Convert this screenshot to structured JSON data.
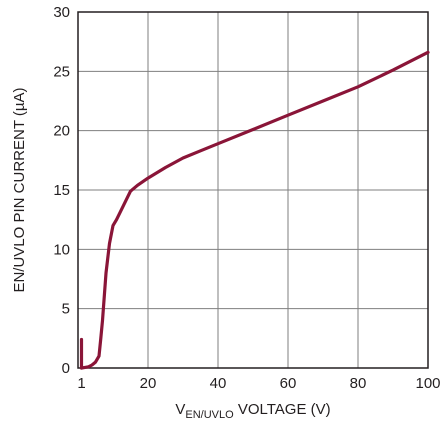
{
  "chart_data": {
    "type": "line",
    "title": "",
    "xlabel": {
      "main": "V",
      "subscript": "EN/UVLO",
      "suffix": " VOLTAGE (V)"
    },
    "ylabel": "EN/UVLO PIN CURRENT (µA)",
    "xlim": [
      0,
      100
    ],
    "ylim": [
      0,
      30
    ],
    "x_ticks": [
      1,
      20,
      40,
      60,
      80,
      100
    ],
    "x_tick_labels": [
      "1",
      "20",
      "40",
      "60",
      "80",
      "100"
    ],
    "y_ticks": [
      0,
      5,
      10,
      15,
      20,
      25,
      30
    ],
    "y_tick_labels": [
      "0",
      "5",
      "10",
      "15",
      "20",
      "25",
      "30"
    ],
    "x_grid": [
      20,
      40,
      60,
      80
    ],
    "y_grid": [
      5,
      10,
      15,
      20,
      25
    ],
    "grid": true,
    "line_color": "#8a1538",
    "series": [
      {
        "x": [
          1,
          2,
          3,
          4,
          5,
          6,
          6.5,
          7,
          8,
          9,
          10,
          11,
          13,
          15,
          17,
          20,
          25,
          30,
          35,
          40,
          50,
          60,
          70,
          80,
          90,
          100
        ],
        "y": [
          0,
          0.05,
          0.1,
          0.25,
          0.5,
          1.0,
          2.5,
          4.0,
          8.0,
          10.5,
          12.0,
          12.5,
          13.7,
          14.9,
          15.4,
          16.0,
          16.9,
          17.7,
          18.3,
          18.9,
          20.1,
          21.3,
          22.5,
          23.7,
          25.1,
          26.6
        ]
      },
      {
        "x": [
          1,
          1
        ],
        "y": [
          0,
          2.4
        ]
      }
    ]
  }
}
